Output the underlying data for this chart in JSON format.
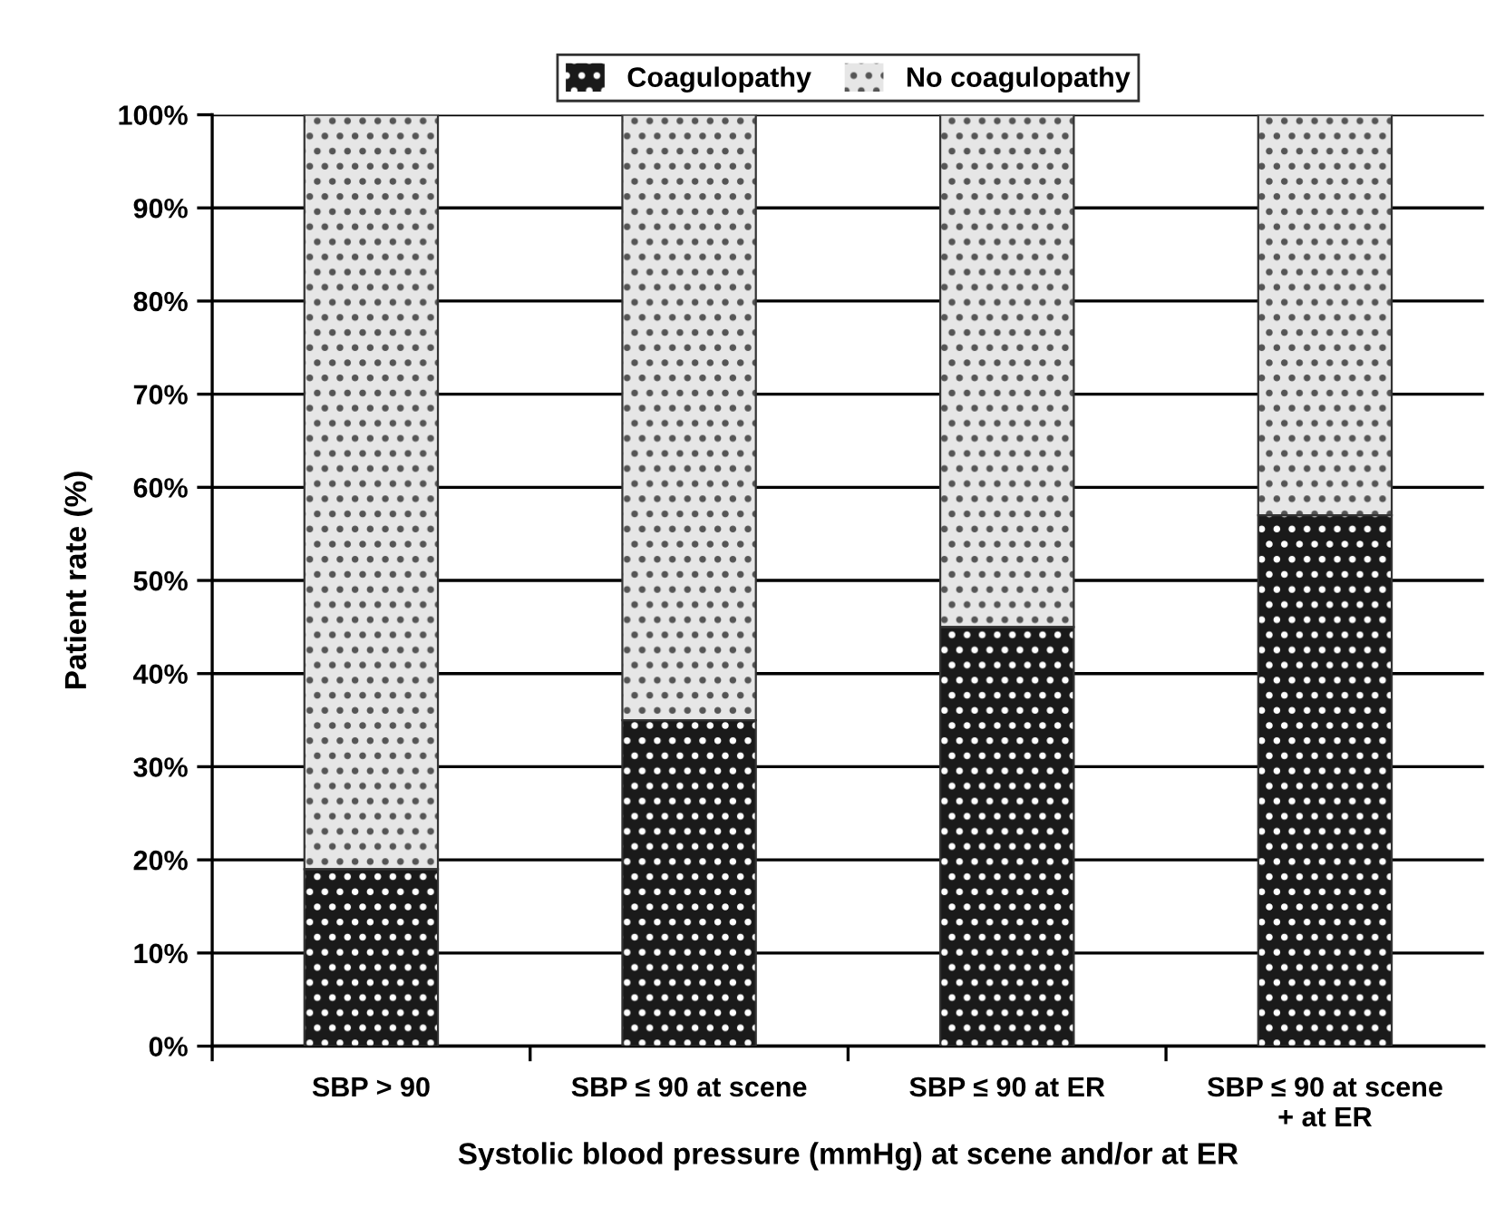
{
  "chart_data": {
    "type": "bar",
    "stacked": true,
    "xlabel": "Systolic blood pressure (mmHg) at scene and/or at ER",
    "ylabel": "Patient rate (%)",
    "categories": [
      "SBP > 90",
      "SBP ≤ 90 at scene",
      "SBP ≤ 90 at ER",
      "SBP ≤ 90 at scene\n+ at ER"
    ],
    "series": [
      {
        "name": "Coagulopathy",
        "color": "#1a1a1a",
        "values": [
          19,
          35,
          45,
          57
        ]
      },
      {
        "name": "No coagulopathy",
        "color": "#e6e6e6",
        "values": [
          81,
          65,
          55,
          43
        ]
      }
    ],
    "ylim": [
      0,
      100
    ],
    "yticks": [
      {
        "value": 0,
        "label": "0%"
      },
      {
        "value": 10,
        "label": "10%"
      },
      {
        "value": 20,
        "label": "20%"
      },
      {
        "value": 30,
        "label": "30%"
      },
      {
        "value": 40,
        "label": "40%"
      },
      {
        "value": 50,
        "label": "50%"
      },
      {
        "value": 60,
        "label": "60%"
      },
      {
        "value": 70,
        "label": "70%"
      },
      {
        "value": 80,
        "label": "80%"
      },
      {
        "value": 90,
        "label": "90%"
      },
      {
        "value": 100,
        "label": "100%"
      }
    ],
    "grid": "y",
    "legend": "top"
  }
}
